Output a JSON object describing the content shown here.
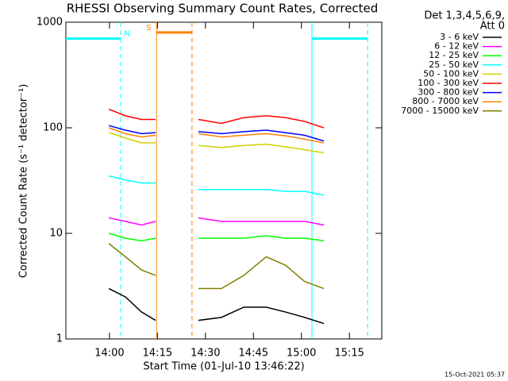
{
  "chart_data": {
    "type": "line",
    "log_y": true,
    "title": "RHESSI Observing Summary Count Rates, Corrected",
    "xlabel": "Start Time (01-Jul-10 13:46:22)",
    "ylabel": "Corrected Count Rate (s⁻¹ detector⁻¹)",
    "legend_header": [
      "Det 1,3,4,5,6,9,",
      "Att 0"
    ],
    "footer": "15-Oct-2021 05:37",
    "xlim": [
      826.37,
      925.13
    ],
    "xticks": [
      {
        "value": 840,
        "label": "14:00"
      },
      {
        "value": 855,
        "label": "14:15"
      },
      {
        "value": 870,
        "label": "14:30"
      },
      {
        "value": 885,
        "label": "14:45"
      },
      {
        "value": 900,
        "label": "15:00"
      },
      {
        "value": 915,
        "label": "15:15"
      }
    ],
    "ylim": [
      1,
      1000
    ],
    "yticks": [
      1,
      10,
      100,
      1000
    ],
    "x": [
      839.8,
      845,
      850,
      854.4,
      861,
      867.8,
      875,
      882,
      889,
      895,
      901,
      907
    ],
    "series": [
      {
        "name": "3 - 6 keV",
        "color": "#000000",
        "values": [
          3,
          2.5,
          1.8,
          1.5,
          null,
          1.5,
          1.6,
          2,
          2,
          1.8,
          1.6,
          1.4
        ]
      },
      {
        "name": "6 - 12 keV",
        "color": "#ff00ff",
        "values": [
          14,
          13,
          12,
          13,
          null,
          14,
          13,
          13,
          13,
          13,
          13,
          12
        ]
      },
      {
        "name": "12 - 25 keV",
        "color": "#00ff00",
        "values": [
          10,
          9,
          8.5,
          9,
          null,
          9,
          9,
          9,
          9.5,
          9,
          9,
          8.5
        ]
      },
      {
        "name": "25 - 50 keV",
        "color": "#00ffff",
        "values": [
          35,
          32,
          30,
          30,
          null,
          26,
          26,
          26,
          26,
          25,
          25,
          23
        ]
      },
      {
        "name": "50 - 100 keV",
        "color": "#d0d000",
        "values": [
          90,
          80,
          72,
          72,
          null,
          68,
          65,
          68,
          70,
          66,
          62,
          58
        ]
      },
      {
        "name": "100 - 300 keV",
        "color": "#ff0000",
        "values": [
          150,
          130,
          120,
          120,
          null,
          120,
          110,
          125,
          130,
          125,
          115,
          100
        ]
      },
      {
        "name": "300 - 800 keV",
        "color": "#0000ff",
        "values": [
          105,
          95,
          88,
          90,
          null,
          92,
          88,
          92,
          95,
          90,
          85,
          75
        ]
      },
      {
        "name": "800 - 7000 keV",
        "color": "#ff8000",
        "values": [
          100,
          88,
          82,
          85,
          null,
          88,
          82,
          85,
          88,
          84,
          78,
          72
        ]
      },
      {
        "name": "7000 - 15000 keV",
        "color": "#808000",
        "values": [
          8,
          6,
          4.5,
          4,
          null,
          3,
          3,
          4,
          6,
          5,
          3.5,
          3
        ]
      }
    ],
    "flags": [
      {
        "label": "N",
        "color": "#00ffff",
        "x": [
          826.37,
          843.5
        ],
        "level": 700
      },
      {
        "label": "S",
        "color": "#ff8000",
        "x": [
          854.7,
          865.8
        ],
        "level": 800
      },
      {
        "color": "#00ffff",
        "x": [
          903.3,
          920.7
        ],
        "level": 700
      }
    ]
  }
}
